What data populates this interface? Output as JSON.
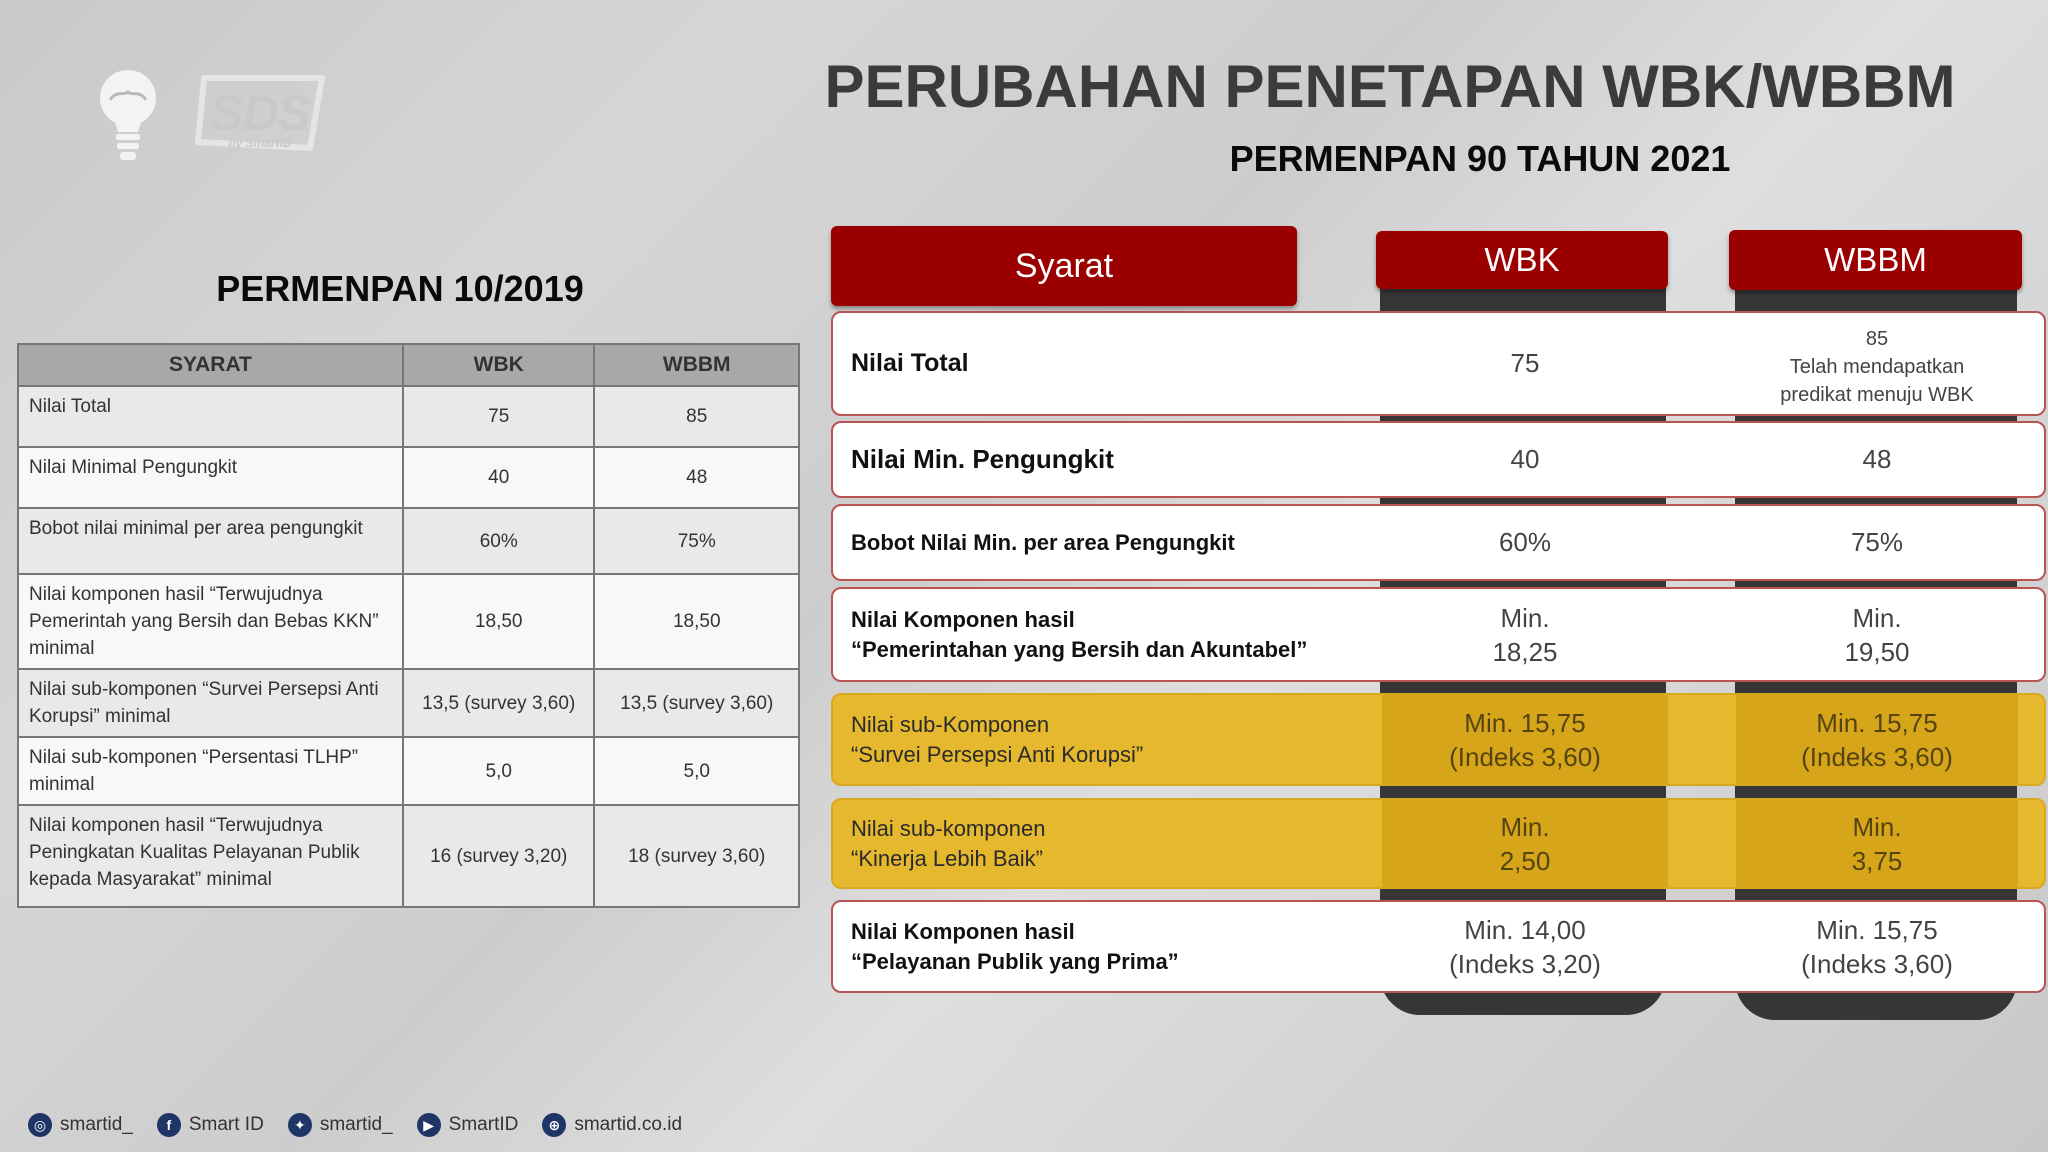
{
  "logo": {
    "brand": "SDS",
    "brand_sub": "by SmartID"
  },
  "title": "PERUBAHAN PENETAPAN WBK/WBBM",
  "subtitle": "PERMENPAN 90 TAHUN 2021",
  "old": {
    "title": "PERMENPAN 10/2019",
    "headers": [
      "SYARAT",
      "WBK",
      "WBBM"
    ],
    "rows": [
      {
        "syarat": "Nilai Total",
        "wbk": "75",
        "wbbm": "85"
      },
      {
        "syarat": "Nilai Minimal Pengungkit",
        "wbk": "40",
        "wbbm": "48"
      },
      {
        "syarat": "Bobot nilai minimal per area pengungkit",
        "wbk": "60%",
        "wbbm": "75%"
      },
      {
        "syarat": "Nilai komponen hasil “Terwujudnya Pemerintah yang Bersih dan Bebas KKN” minimal",
        "wbk": "18,50",
        "wbbm": "18,50"
      },
      {
        "syarat": "Nilai sub-komponen “Survei Persepsi Anti Korupsi” minimal",
        "wbk": "13,5 (survey 3,60)",
        "wbbm": "13,5 (survey 3,60)"
      },
      {
        "syarat": "Nilai sub-komponen “Persentasi TLHP” minimal",
        "wbk": "5,0",
        "wbbm": "5,0"
      },
      {
        "syarat": "Nilai komponen hasil “Terwujudnya Peningkatan Kualitas Pelayanan Publik kepada Masyarakat” minimal",
        "wbk": "16 (survey 3,20)",
        "wbbm": "18 (survey 3,60)"
      }
    ]
  },
  "new": {
    "headers": [
      "Syarat",
      "WBK",
      "WBBM"
    ],
    "rows": [
      {
        "syarat": "Nilai Total",
        "wbk": "75",
        "wbbm_1": "85",
        "wbbm_2": "Telah mendapatkan",
        "wbbm_3": "predikat menuju WBK"
      },
      {
        "syarat": "Nilai Min. Pengungkit",
        "wbk": "40",
        "wbbm": "48"
      },
      {
        "syarat": "Bobot Nilai Min. per area Pengungkit",
        "wbk": "60%",
        "wbbm": "75%"
      },
      {
        "syarat_1": "Nilai Komponen hasil",
        "syarat_2": "“Pemerintahan yang Bersih dan Akuntabel”",
        "wbk_1": "Min.",
        "wbk_2": "18,25",
        "wbbm_1": "Min.",
        "wbbm_2": "19,50"
      },
      {
        "syarat_1": "Nilai sub-Komponen",
        "syarat_2": "“Survei Persepsi Anti Korupsi”",
        "wbk_1": "Min. 15,75",
        "wbk_2": "(Indeks 3,60)",
        "wbbm_1": "Min. 15,75",
        "wbbm_2": "(Indeks 3,60)"
      },
      {
        "syarat_1": "Nilai sub-komponen",
        "syarat_2": "“Kinerja Lebih Baik”",
        "wbk_1": "Min.",
        "wbk_2": "2,50",
        "wbbm_1": "Min.",
        "wbbm_2": "3,75"
      },
      {
        "syarat_1": "Nilai Komponen hasil",
        "syarat_2": "“Pelayanan Publik yang Prima”",
        "wbk_1": "Min. 14,00",
        "wbk_2": "(Indeks 3,20)",
        "wbbm_1": "Min. 15,75",
        "wbbm_2": "(Indeks 3,60)"
      }
    ]
  },
  "footer": [
    {
      "icon": "instagram-icon",
      "label": "smartid_"
    },
    {
      "icon": "facebook-icon",
      "label": "Smart ID"
    },
    {
      "icon": "twitter-icon",
      "label": "smartid_"
    },
    {
      "icon": "youtube-icon",
      "label": "SmartID"
    },
    {
      "icon": "globe-icon",
      "label": "smartid.co.id"
    }
  ],
  "colors": {
    "header_red": "#9b0000",
    "highlight_yellow": "#e6b82e",
    "title_gray": "#3b3b3b"
  }
}
